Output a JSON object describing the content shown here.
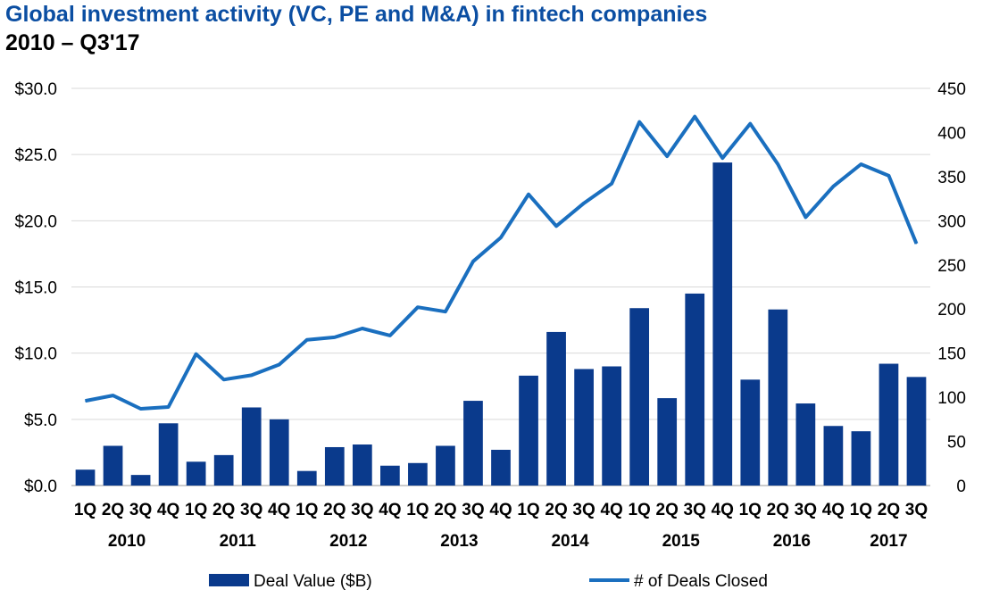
{
  "chart_data": {
    "type": "bar+line",
    "title": "Global investment activity (VC, PE and M&A) in fintech companies",
    "subtitle": "2010 – Q3'17",
    "categories": [
      "1Q",
      "2Q",
      "3Q",
      "4Q",
      "1Q",
      "2Q",
      "3Q",
      "4Q",
      "1Q",
      "2Q",
      "3Q",
      "4Q",
      "1Q",
      "2Q",
      "3Q",
      "4Q",
      "1Q",
      "2Q",
      "3Q",
      "4Q",
      "1Q",
      "2Q",
      "3Q",
      "4Q",
      "1Q",
      "2Q",
      "3Q",
      "4Q",
      "1Q",
      "2Q",
      "3Q"
    ],
    "years": [
      {
        "label": "2010",
        "start": 0,
        "count": 4
      },
      {
        "label": "2011",
        "start": 4,
        "count": 4
      },
      {
        "label": "2012",
        "start": 8,
        "count": 4
      },
      {
        "label": "2013",
        "start": 12,
        "count": 4
      },
      {
        "label": "2014",
        "start": 16,
        "count": 4
      },
      {
        "label": "2015",
        "start": 20,
        "count": 4
      },
      {
        "label": "2016",
        "start": 24,
        "count": 4
      },
      {
        "label": "2017",
        "start": 28,
        "count": 3
      }
    ],
    "series": [
      {
        "name": "Deal Value ($B)",
        "kind": "bar",
        "axis": "left",
        "color": "#0a3a8c",
        "values": [
          1.2,
          3.0,
          0.8,
          4.7,
          1.8,
          2.3,
          5.9,
          5.0,
          1.1,
          2.9,
          3.1,
          1.5,
          1.7,
          3.0,
          6.4,
          2.7,
          8.3,
          11.6,
          8.8,
          9.0,
          13.4,
          6.6,
          14.5,
          24.4,
          8.0,
          13.3,
          6.2,
          4.5,
          4.1,
          9.2,
          8.2
        ]
      },
      {
        "name": "# of Deals Closed",
        "kind": "line",
        "axis": "right",
        "color": "#1a6fbf",
        "values": [
          96,
          102,
          87,
          89,
          149,
          120,
          125,
          137,
          165,
          168,
          178,
          170,
          202,
          197,
          254,
          281,
          330,
          294,
          320,
          342,
          412,
          373,
          418,
          371,
          410,
          364,
          304,
          339,
          364,
          351,
          274
        ]
      }
    ],
    "y_left": {
      "min": 0,
      "max": 30,
      "step": 5,
      "ticks": [
        "$0.0",
        "$5.0",
        "$10.0",
        "$15.0",
        "$20.0",
        "$25.0",
        "$30.0"
      ]
    },
    "y_right": {
      "min": 0,
      "max": 450,
      "step": 50,
      "ticks": [
        "0",
        "50",
        "100",
        "150",
        "200",
        "250",
        "300",
        "350",
        "400",
        "450"
      ]
    },
    "grid": "horizontal",
    "legend_position": "bottom"
  }
}
